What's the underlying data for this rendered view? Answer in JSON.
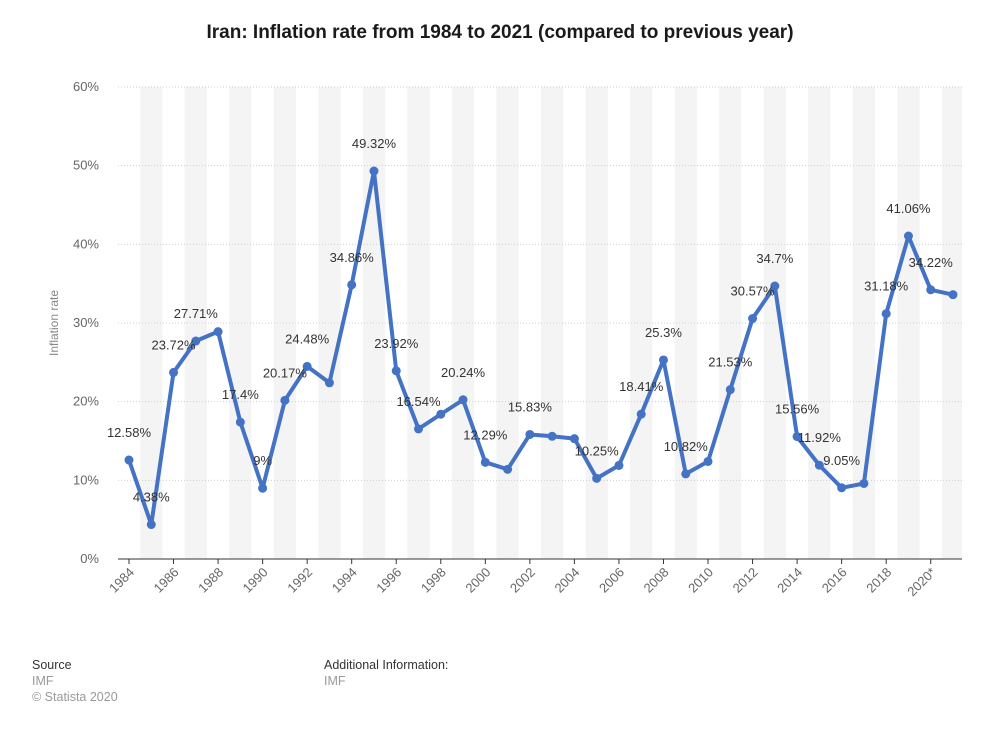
{
  "chart_data": {
    "type": "line",
    "title": "Iran: Inflation rate from 1984 to 2021 (compared to previous year)",
    "xlabel": "",
    "ylabel": "Inflation rate",
    "ylim": [
      0,
      60
    ],
    "yticks": [
      "0%",
      "10%",
      "20%",
      "30%",
      "40%",
      "50%",
      "60%"
    ],
    "xticks": [
      "1984",
      "1986",
      "1988",
      "1990",
      "1992",
      "1994",
      "1996",
      "1998",
      "2000",
      "2002",
      "2004",
      "2006",
      "2008",
      "2010",
      "2012",
      "2014",
      "2016",
      "2018",
      "2020*"
    ],
    "series": [
      {
        "name": "Inflation rate",
        "color": "#4472c4",
        "x": [
          1984,
          1985,
          1986,
          1987,
          1988,
          1989,
          1990,
          1991,
          1992,
          1993,
          1994,
          1995,
          1996,
          1997,
          1998,
          1999,
          2000,
          2001,
          2002,
          2003,
          2004,
          2005,
          2006,
          2007,
          2008,
          2009,
          2010,
          2011,
          2012,
          2013,
          2014,
          2015,
          2016,
          2017,
          2018,
          2019,
          2020,
          2021
        ],
        "values": [
          12.58,
          4.38,
          23.72,
          27.71,
          28.9,
          17.4,
          9.0,
          20.17,
          24.48,
          22.4,
          34.86,
          49.32,
          23.92,
          16.54,
          18.4,
          20.24,
          12.29,
          11.4,
          15.83,
          15.6,
          15.3,
          10.25,
          11.9,
          18.41,
          25.3,
          10.82,
          12.4,
          21.53,
          30.57,
          34.7,
          15.56,
          11.92,
          9.05,
          9.6,
          31.18,
          41.06,
          34.22,
          33.6
        ],
        "labels": [
          "12.58%",
          "4.38%",
          "23.72%",
          "27.71%",
          "",
          "17.4%",
          "9%",
          "20.17%",
          "24.48%",
          "",
          "34.86%",
          "49.32%",
          "23.92%",
          "16.54%",
          "",
          "20.24%",
          "12.29%",
          "",
          "15.83%",
          "",
          "",
          "10.25%",
          "",
          "18.41%",
          "25.3%",
          "10.82%",
          "",
          "21.53%",
          "30.57%",
          "34.7%",
          "15.56%",
          "11.92%",
          "9.05%",
          "",
          "31.18%",
          "41.06%",
          "34.22%",
          ""
        ]
      }
    ]
  },
  "footer": {
    "source_heading": "Source",
    "source_value": "IMF",
    "copyright": "© Statista 2020",
    "additional_heading": "Additional Information:",
    "additional_value": "IMF"
  }
}
